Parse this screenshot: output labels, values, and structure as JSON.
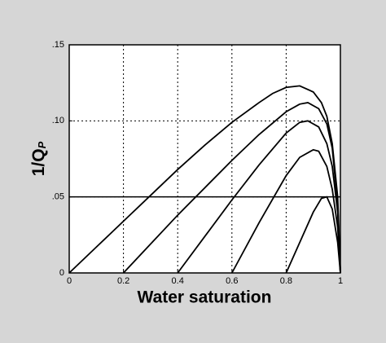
{
  "chart_data": {
    "type": "line",
    "x_label": "Water saturation",
    "y_label": "1/Q",
    "y_label_subscript": "P",
    "xlim": [
      0,
      1
    ],
    "ylim": [
      0,
      0.15
    ],
    "xticks": [
      0,
      0.2,
      0.4,
      0.6,
      0.8,
      1
    ],
    "yticks": [
      {
        "value": 0,
        "label": "0"
      },
      {
        "value": 0.05,
        "label": ".05"
      },
      {
        "value": 0.1,
        "label": ".10"
      },
      {
        "value": 0.15,
        "label": ".15"
      }
    ],
    "grid": true,
    "hline": 0.05,
    "series": [
      {
        "color": "#000000",
        "x": [
          0,
          0.1,
          0.2,
          0.3,
          0.4,
          0.5,
          0.6,
          0.7,
          0.75,
          0.8,
          0.85,
          0.9,
          0.93,
          0.95,
          0.97,
          0.99,
          1.0
        ],
        "values": [
          0,
          0.017,
          0.034,
          0.051,
          0.068,
          0.084,
          0.099,
          0.112,
          0.118,
          0.122,
          0.123,
          0.119,
          0.112,
          0.103,
          0.085,
          0.05,
          0
        ]
      },
      {
        "color": "#000000",
        "x": [
          0.2,
          0.3,
          0.4,
          0.5,
          0.6,
          0.7,
          0.8,
          0.85,
          0.88,
          0.92,
          0.95,
          0.97,
          0.99,
          1.0
        ],
        "values": [
          0,
          0.019,
          0.038,
          0.056,
          0.074,
          0.091,
          0.106,
          0.111,
          0.112,
          0.108,
          0.098,
          0.082,
          0.045,
          0
        ]
      },
      {
        "color": "#000000",
        "x": [
          0.4,
          0.5,
          0.6,
          0.7,
          0.8,
          0.85,
          0.88,
          0.92,
          0.95,
          0.97,
          0.99,
          1.0
        ],
        "values": [
          0,
          0.024,
          0.048,
          0.071,
          0.092,
          0.099,
          0.1,
          0.096,
          0.085,
          0.07,
          0.04,
          0
        ]
      },
      {
        "color": "#000000",
        "x": [
          0.6,
          0.7,
          0.8,
          0.85,
          0.9,
          0.92,
          0.95,
          0.97,
          0.99,
          1.0
        ],
        "values": [
          0,
          0.033,
          0.064,
          0.076,
          0.081,
          0.08,
          0.07,
          0.055,
          0.03,
          0
        ]
      },
      {
        "color": "#000000",
        "x": [
          0.8,
          0.85,
          0.9,
          0.93,
          0.95,
          0.97,
          0.99,
          1.0
        ],
        "values": [
          0,
          0.02,
          0.04,
          0.049,
          0.05,
          0.042,
          0.02,
          0
        ]
      }
    ]
  }
}
